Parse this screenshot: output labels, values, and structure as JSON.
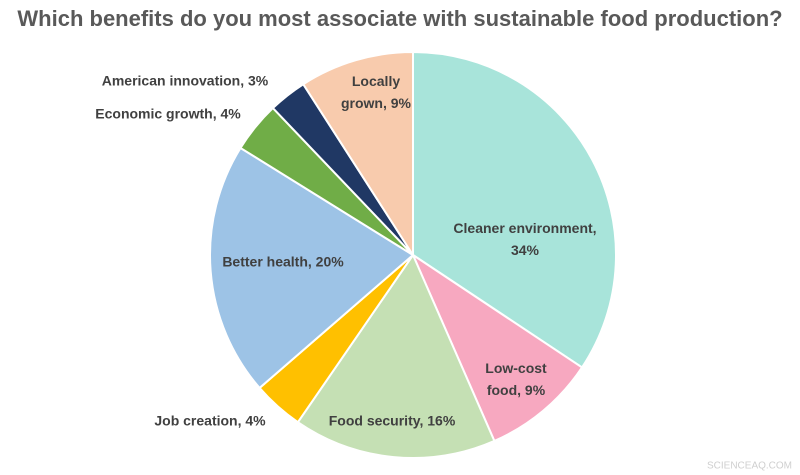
{
  "chart_data": {
    "type": "pie",
    "title": "Which benefits do you most associate with sustainable food production?",
    "categories": [
      "Cleaner environment, 34%",
      "Low-cost food, 9%",
      "Food security, 16%",
      "Job creation, 4%",
      "Better health, 20%",
      "Economic growth, 4%",
      "American innovation, 3%",
      "Locally grown, 9%"
    ],
    "values": [
      34,
      9,
      16,
      4,
      20,
      4,
      3,
      9
    ],
    "colors": [
      "#a8e4da",
      "#f7a8c0",
      "#c5e0b4",
      "#ffc000",
      "#9dc3e6",
      "#70ad47",
      "#203864",
      "#f8cbad"
    ],
    "watermark": "SCIENCEAQ.COM"
  }
}
